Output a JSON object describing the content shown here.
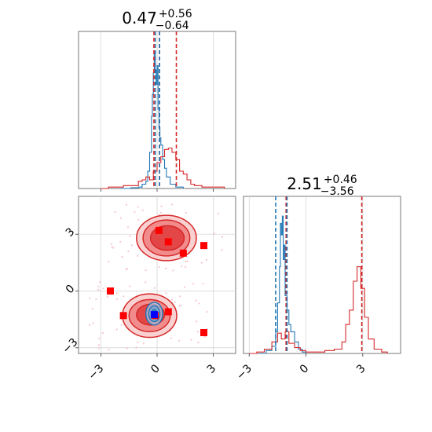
{
  "chart_data": [
    {
      "type": "line",
      "panel": "top-left",
      "title": {
        "base": "0.47",
        "sup": "+0.56",
        "sub": "−0.64"
      },
      "xlim": [
        -4.2,
        4.2
      ],
      "grid": true,
      "series": [
        {
          "color": "#1f77b4",
          "x": [
            -2.0,
            -1.4,
            -1.0,
            -0.8,
            -0.6,
            -0.5,
            -0.4,
            -0.3,
            -0.25,
            -0.2,
            -0.15,
            -0.1,
            -0.05,
            0.0,
            0.05,
            0.1,
            0.15,
            0.2,
            0.3,
            0.4,
            0.5,
            0.7,
            1.0,
            1.4
          ],
          "density": [
            0,
            0.005,
            0.01,
            0.03,
            0.05,
            0.12,
            0.25,
            0.5,
            0.65,
            0.8,
            0.95,
            0.82,
            0.72,
            0.85,
            0.55,
            0.42,
            0.35,
            0.3,
            0.2,
            0.14,
            0.08,
            0.03,
            0.01,
            0
          ]
        },
        {
          "color": "#d62728",
          "x": [
            -3.0,
            -2.6,
            -2.2,
            -1.8,
            -1.4,
            -1.0,
            -0.8,
            -0.6,
            -0.4,
            -0.2,
            0.0,
            0.2,
            0.4,
            0.6,
            0.8,
            1.0,
            1.2,
            1.4,
            1.6,
            1.8,
            2.0,
            2.4,
            3.0,
            3.6
          ],
          "density": [
            0,
            0.01,
            0.01,
            0.02,
            0.02,
            0.05,
            0.06,
            0.08,
            0.06,
            0.12,
            0.18,
            0.22,
            0.27,
            0.28,
            0.25,
            0.2,
            0.12,
            0.1,
            0.06,
            0.03,
            0.02,
            0.01,
            0.01,
            0
          ]
        }
      ],
      "quantile_lines": [
        {
          "x": -0.1,
          "color": "#1f77b4"
        },
        {
          "x": -0.17,
          "color": "#d62728"
        },
        {
          "x": 0.13,
          "color": "#d62728"
        },
        {
          "x": 1.03,
          "color": "#d62728"
        },
        {
          "x": 0.13,
          "color": "#1f77b4"
        }
      ]
    },
    {
      "type": "scatter",
      "panel": "bottom-left",
      "xlim": [
        -4.2,
        4.2
      ],
      "ylim": [
        -3.3,
        5.0
      ],
      "xticks": [
        "−3",
        "0",
        "3"
      ],
      "yticks": [
        "−3",
        "0",
        "3"
      ],
      "grid": true,
      "red_contours": [
        {
          "cx": 0.5,
          "cy": 2.8,
          "rx": 1.6,
          "ry": 1.2
        },
        {
          "cx": 0.5,
          "cy": 2.8,
          "rx": 1.25,
          "ry": 0.95
        },
        {
          "cx": 0.55,
          "cy": 2.8,
          "rx": 0.9,
          "ry": 0.65
        },
        {
          "cx": -0.4,
          "cy": -1.3,
          "rx": 1.45,
          "ry": 1.15
        },
        {
          "cx": -0.4,
          "cy": -1.3,
          "rx": 1.1,
          "ry": 0.85
        },
        {
          "cx": -0.35,
          "cy": -1.25,
          "rx": 0.75,
          "ry": 0.55
        }
      ],
      "blue_contours": [
        {
          "cx": -0.15,
          "cy": -1.2,
          "rx": 0.45,
          "ry": 0.6
        },
        {
          "cx": -0.15,
          "cy": -1.2,
          "rx": 0.3,
          "ry": 0.42
        },
        {
          "cx": -0.15,
          "cy": -1.2,
          "rx": 0.15,
          "ry": 0.22
        }
      ],
      "square_markers": [
        {
          "x": 0.1,
          "y": 3.2
        },
        {
          "x": 0.6,
          "y": 2.6
        },
        {
          "x": 1.4,
          "y": 2.0
        },
        {
          "x": 2.5,
          "y": 2.4
        },
        {
          "x": -2.5,
          "y": 0.0
        },
        {
          "x": -1.8,
          "y": -1.3
        },
        {
          "x": -0.1,
          "y": -1.3
        },
        {
          "x": 0.6,
          "y": -1.1
        },
        {
          "x": 2.5,
          "y": -2.2
        }
      ],
      "blue_marker": {
        "x": -0.15,
        "y": -1.25
      },
      "colors": {
        "red": "#d62728",
        "light_red": "#f4b6b6",
        "blue": "#1f77b4",
        "marker": "#ff0000",
        "blue_marker": "#0000ff"
      }
    },
    {
      "type": "line",
      "panel": "bottom-right",
      "title": {
        "base": "2.51",
        "sup": "+0.46",
        "sub": "−3.56"
      },
      "xlim": [
        -3.3,
        5.0
      ],
      "xticks": [
        "−3",
        "0",
        "3"
      ],
      "grid": true,
      "series": [
        {
          "color": "#1f77b4",
          "x": [
            -2.5,
            -2.1,
            -1.8,
            -1.6,
            -1.5,
            -1.4,
            -1.35,
            -1.3,
            -1.25,
            -1.2,
            -1.15,
            -1.1,
            -1.0,
            -0.9,
            -0.8,
            -0.6,
            -0.4,
            -0.2,
            0.0
          ],
          "density": [
            0,
            0.02,
            0.05,
            0.15,
            0.35,
            0.6,
            0.9,
            0.82,
            0.95,
            0.65,
            0.75,
            0.4,
            0.3,
            0.2,
            0.15,
            0.08,
            0.03,
            0.01,
            0
          ]
        },
        {
          "color": "#d62728",
          "x": [
            -3.0,
            -2.6,
            -2.2,
            -1.8,
            -1.5,
            -1.3,
            -1.1,
            -0.9,
            -0.6,
            -0.3,
            0.0,
            0.5,
            1.0,
            1.5,
            1.9,
            2.1,
            2.3,
            2.5,
            2.7,
            2.9,
            3.1,
            3.3,
            3.6,
            4.0,
            4.3
          ],
          "density": [
            0,
            0.01,
            0.03,
            0.08,
            0.14,
            0.1,
            0.15,
            0.07,
            0.04,
            0.02,
            0.01,
            0.01,
            0.02,
            0.03,
            0.08,
            0.2,
            0.3,
            0.5,
            0.6,
            0.45,
            0.25,
            0.1,
            0.03,
            0.01,
            0
          ]
        }
      ],
      "quantile_lines": [
        {
          "x": -1.6,
          "color": "#1f77b4"
        },
        {
          "x": -1.05,
          "color": "#d62728"
        },
        {
          "x": -1.0,
          "color": "#1f77b4"
        },
        {
          "x": 2.95,
          "color": "#d62728"
        }
      ]
    }
  ]
}
